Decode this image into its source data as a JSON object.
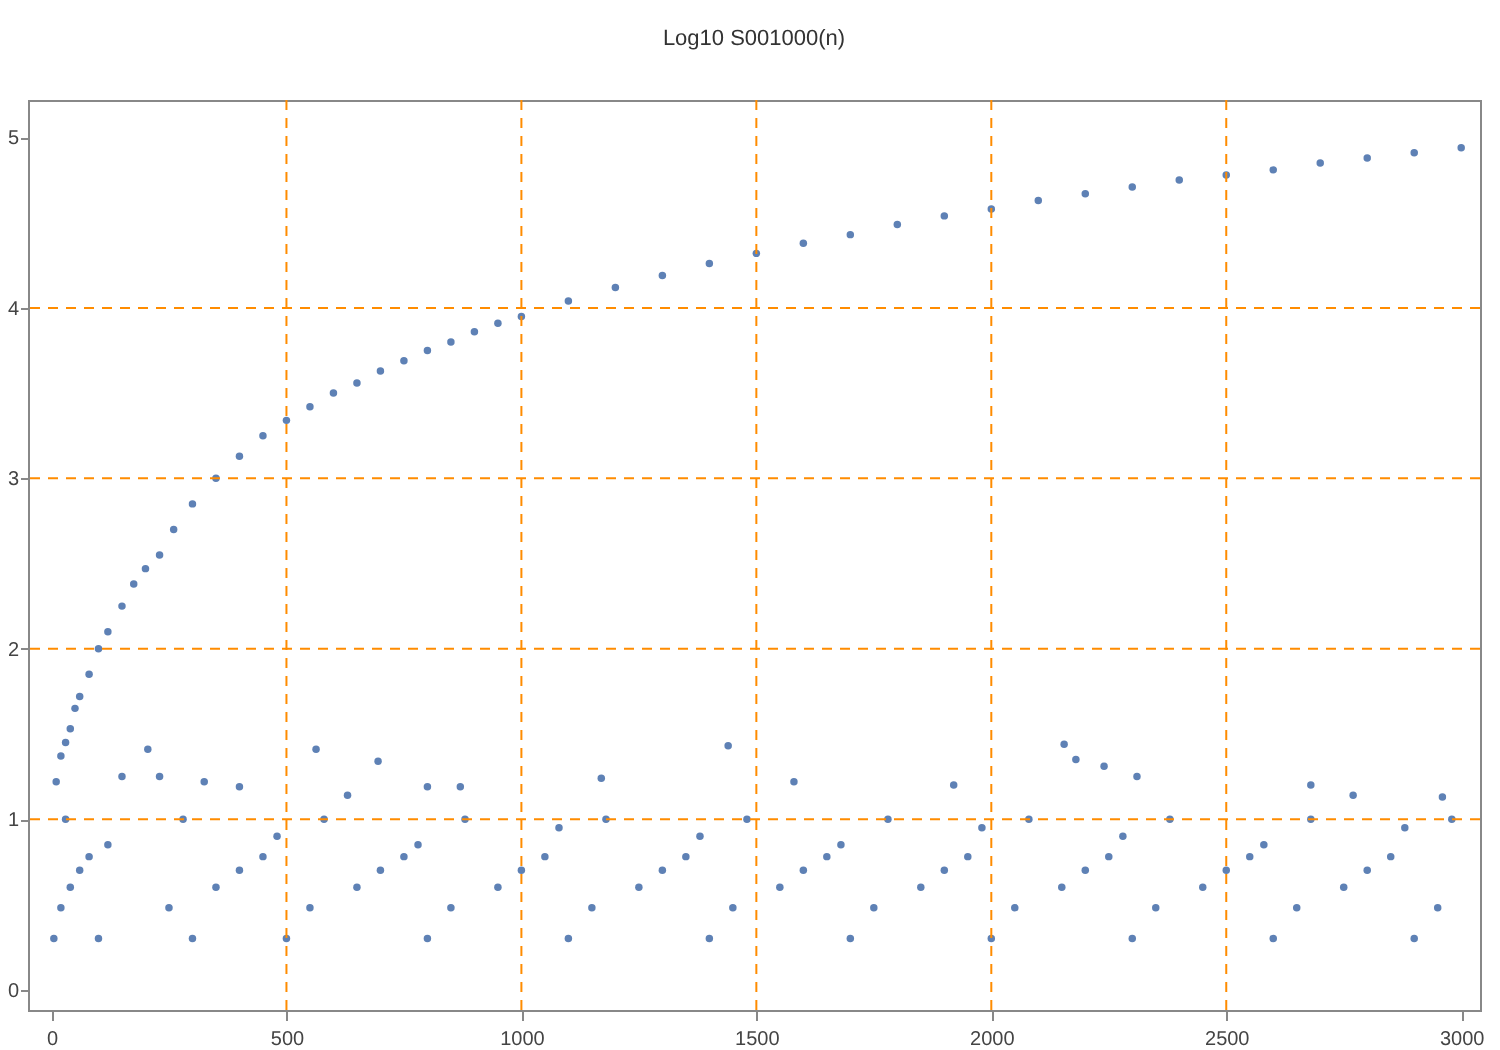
{
  "chart_data": {
    "type": "scatter",
    "title": "Log10 S001000(n)",
    "series": [
      {
        "color": "#5e81b5",
        "x": [
          10,
          20,
          30,
          40,
          50,
          60,
          80,
          100,
          120,
          150,
          175,
          200,
          230,
          260,
          300,
          350,
          400,
          450,
          500,
          550,
          600,
          650,
          700,
          750,
          800,
          850,
          900,
          950,
          1000,
          1100,
          1200,
          1300,
          1400,
          1500,
          1600,
          1700,
          1800,
          1900,
          2000,
          2100,
          2200,
          2300,
          2400,
          2500,
          2600,
          2700,
          2800,
          2900,
          3000,
          205,
          150,
          325,
          230,
          400,
          563,
          695,
          630,
          800,
          870,
          1170,
          1440,
          1580,
          1920,
          2155,
          2180,
          2240,
          2310,
          2680,
          2770,
          2960,
          5,
          100,
          300,
          500,
          800,
          1100,
          1400,
          1700,
          2000,
          2300,
          2600,
          2900,
          20,
          250,
          550,
          850,
          1150,
          1450,
          1750,
          2050,
          2350,
          2650,
          2950,
          40,
          350,
          650,
          950,
          1250,
          1550,
          1850,
          2150,
          2450,
          2750,
          60,
          400,
          700,
          1000,
          1300,
          1600,
          1900,
          2200,
          2500,
          2800,
          80,
          450,
          750,
          1050,
          1350,
          1650,
          1950,
          2250,
          2550,
          2850,
          120,
          480,
          780,
          1080,
          1380,
          1680,
          1980,
          2280,
          2580,
          2880,
          30,
          280,
          580,
          880,
          1180,
          1480,
          1780,
          2080,
          2380,
          2680,
          2980
        ],
        "values": [
          1.22,
          1.37,
          1.45,
          1.53,
          1.65,
          1.72,
          1.85,
          2.0,
          2.1,
          2.25,
          2.38,
          2.47,
          2.55,
          2.7,
          2.85,
          3.0,
          3.13,
          3.25,
          3.34,
          3.42,
          3.5,
          3.56,
          3.63,
          3.69,
          3.75,
          3.8,
          3.86,
          3.91,
          3.95,
          4.04,
          4.12,
          4.19,
          4.26,
          4.32,
          4.38,
          4.43,
          4.49,
          4.54,
          4.58,
          4.63,
          4.67,
          4.71,
          4.75,
          4.78,
          4.81,
          4.85,
          4.88,
          4.91,
          4.94,
          1.41,
          1.25,
          1.22,
          1.25,
          1.19,
          1.41,
          1.34,
          1.14,
          1.19,
          1.19,
          1.24,
          1.43,
          1.22,
          1.2,
          1.44,
          1.35,
          1.31,
          1.25,
          1.2,
          1.14,
          1.13,
          0.3,
          0.3,
          0.3,
          0.3,
          0.3,
          0.3,
          0.3,
          0.3,
          0.3,
          0.3,
          0.3,
          0.3,
          0.48,
          0.48,
          0.48,
          0.48,
          0.48,
          0.48,
          0.48,
          0.48,
          0.48,
          0.48,
          0.48,
          0.6,
          0.6,
          0.6,
          0.6,
          0.6,
          0.6,
          0.6,
          0.6,
          0.6,
          0.6,
          0.7,
          0.7,
          0.7,
          0.7,
          0.7,
          0.7,
          0.7,
          0.7,
          0.7,
          0.7,
          0.78,
          0.78,
          0.78,
          0.78,
          0.78,
          0.78,
          0.78,
          0.78,
          0.78,
          0.78,
          0.85,
          0.9,
          0.85,
          0.95,
          0.9,
          0.85,
          0.95,
          0.9,
          0.85,
          0.95,
          1.0,
          1.0,
          1.0,
          1.0,
          1.0,
          1.0,
          1.0,
          1.0,
          1.0,
          1.0,
          1.0
        ]
      }
    ],
    "xlim": [
      -50,
      3040
    ],
    "ylim": [
      -0.12,
      5.22
    ],
    "xticks": [
      0,
      500,
      1000,
      1500,
      2000,
      2500,
      3000
    ],
    "yticks": [
      0,
      1,
      2,
      3,
      4,
      5
    ],
    "grid": true,
    "marker": "circle"
  }
}
